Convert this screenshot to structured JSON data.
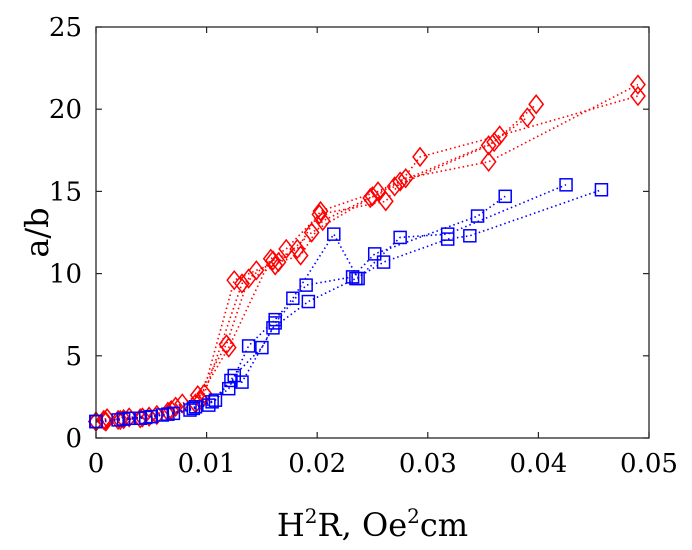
{
  "chart_data": {
    "type": "scatter",
    "title": "",
    "xlabel": {
      "parts": [
        {
          "text": "H",
          "sup": false
        },
        {
          "text": "2",
          "sup": true
        },
        {
          "text": "R, Oe",
          "sup": false
        },
        {
          "text": "2",
          "sup": true
        },
        {
          "text": "cm",
          "sup": false
        }
      ]
    },
    "ylabel": "a/b",
    "xlim": [
      0,
      0.05
    ],
    "ylim": [
      0,
      25
    ],
    "xticks": [
      0,
      0.01,
      0.02,
      0.03,
      0.04,
      0.05
    ],
    "xtick_labels": [
      "0",
      "0.01",
      "0.02",
      "0.03",
      "0.04",
      "0.05"
    ],
    "yticks": [
      0,
      5,
      10,
      15,
      20,
      25
    ],
    "ytick_labels": [
      "0",
      "5",
      "10",
      "15",
      "20",
      "25"
    ],
    "grid": false,
    "box": true,
    "series": [
      {
        "name": "red-1",
        "color": "#ff0000",
        "marker": "diamond",
        "line": "dotted",
        "x": [
          0,
          0.0008,
          0.002,
          0.004,
          0.0065,
          0.0092,
          0.0118,
          0.0138,
          0.016,
          0.0182,
          0.0203,
          0.0255,
          0.028,
          0.0355,
          0.049
        ],
        "y": [
          1.0,
          1.05,
          1.1,
          1.2,
          1.6,
          2.6,
          5.7,
          9.7,
          10.8,
          11.5,
          13.8,
          15.0,
          15.8,
          16.8,
          21.5
        ]
      },
      {
        "name": "red-2",
        "color": "#ff0000",
        "marker": "diamond",
        "line": "dotted",
        "x": [
          0,
          0.0009,
          0.0022,
          0.0042,
          0.0068,
          0.0095,
          0.0125,
          0.0145,
          0.0165,
          0.0185,
          0.0205,
          0.025,
          0.0275,
          0.036,
          0.0398
        ],
        "y": [
          1.0,
          1.0,
          1.1,
          1.25,
          1.7,
          2.3,
          9.6,
          10.2,
          10.7,
          11.1,
          13.2,
          14.7,
          15.6,
          18.0,
          20.3
        ]
      },
      {
        "name": "red-3",
        "color": "#ff0000",
        "marker": "diamond",
        "line": "dotted",
        "x": [
          0,
          0.0007,
          0.0025,
          0.0048,
          0.0072,
          0.009,
          0.012,
          0.0158,
          0.0172,
          0.0202,
          0.0262,
          0.0293,
          0.0365,
          0.049
        ],
        "y": [
          1.0,
          1.1,
          1.15,
          1.3,
          1.9,
          2.1,
          5.5,
          10.9,
          11.5,
          13.6,
          14.4,
          17.1,
          18.4,
          20.8
        ]
      },
      {
        "name": "red-4",
        "color": "#ff0000",
        "marker": "diamond",
        "line": "dotted",
        "x": [
          0,
          0.001,
          0.003,
          0.0055,
          0.0078,
          0.0098,
          0.0132,
          0.0162,
          0.0195,
          0.0248,
          0.027,
          0.0355,
          0.039
        ],
        "y": [
          1.0,
          1.2,
          1.25,
          1.4,
          2.1,
          2.7,
          9.4,
          10.5,
          12.5,
          14.6,
          15.3,
          17.8,
          19.5
        ]
      },
      {
        "name": "blue-1",
        "color": "#0000ff",
        "marker": "square",
        "line": "dotted",
        "x": [
          0,
          0.002,
          0.004,
          0.006,
          0.0085,
          0.0105,
          0.012,
          0.0138,
          0.0162,
          0.0178,
          0.0215,
          0.0237,
          0.0275,
          0.0318,
          0.0425
        ],
        "y": [
          1.0,
          1.1,
          1.2,
          1.4,
          1.7,
          2.2,
          3.0,
          5.6,
          7.2,
          8.5,
          12.4,
          9.7,
          12.2,
          12.4,
          15.4
        ]
      },
      {
        "name": "blue-2",
        "color": "#0000ff",
        "marker": "square",
        "line": "dotted",
        "x": [
          0,
          0.0025,
          0.0045,
          0.0065,
          0.0088,
          0.0102,
          0.0122,
          0.0132,
          0.016,
          0.0192,
          0.0235,
          0.026,
          0.0318,
          0.0338,
          0.0457
        ],
        "y": [
          1.0,
          1.15,
          1.25,
          1.45,
          1.8,
          2.0,
          3.5,
          3.4,
          6.7,
          8.3,
          9.7,
          10.7,
          12.1,
          12.3,
          15.1
        ]
      },
      {
        "name": "blue-3",
        "color": "#0000ff",
        "marker": "square",
        "line": "dotted",
        "x": [
          0,
          0.003,
          0.005,
          0.007,
          0.009,
          0.0108,
          0.0125,
          0.015,
          0.0162,
          0.019,
          0.0232,
          0.0252,
          0.0345,
          0.037
        ],
        "y": [
          1.0,
          1.2,
          1.3,
          1.5,
          1.9,
          2.3,
          3.8,
          5.5,
          7.0,
          9.3,
          9.8,
          11.2,
          13.5,
          14.7
        ]
      }
    ]
  }
}
